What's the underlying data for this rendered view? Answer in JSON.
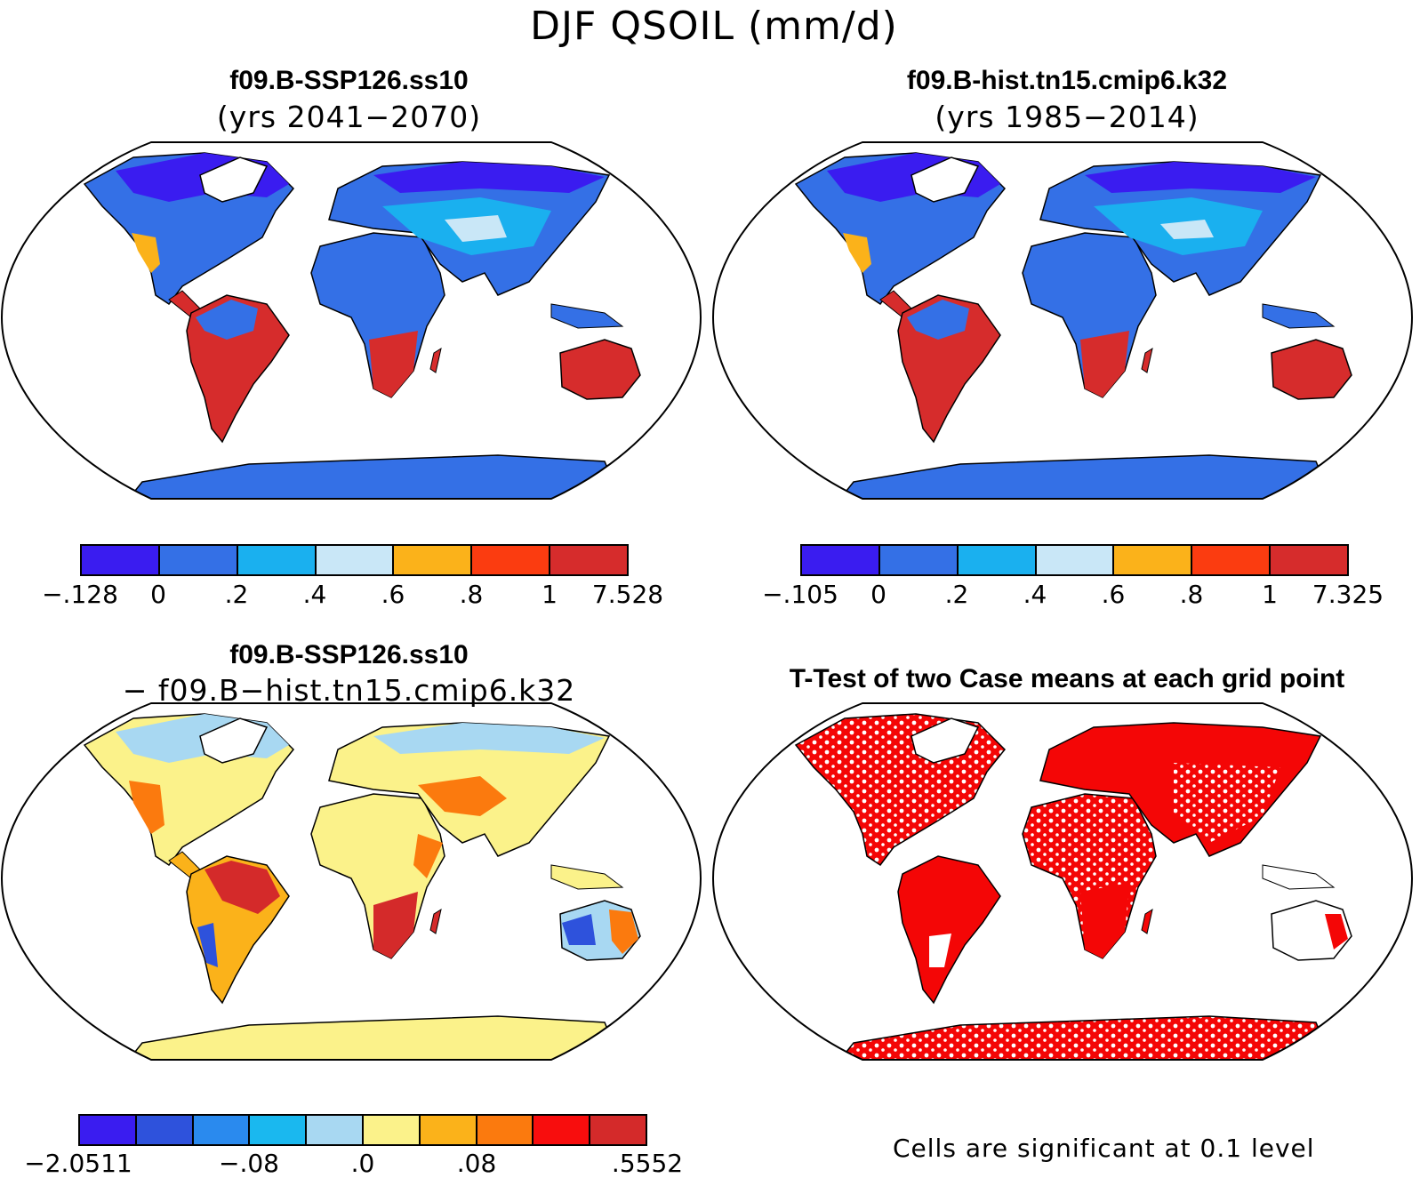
{
  "title": "DJF QSOIL (mm/d)",
  "panels": [
    {
      "title": "f09.B-SSP126.ss10",
      "subtitle": "(yrs 2041−2070)"
    },
    {
      "title": "f09.B-hist.tn15.cmip6.k32",
      "subtitle": "(yrs 1985−2014)"
    },
    {
      "title": "f09.B-SSP126.ss10",
      "subtitle": "− f09.B−hist.tn15.cmip6.k32"
    },
    {
      "title": "T-Test of two Case means at each grid point",
      "subtitle": ""
    }
  ],
  "colorbars": [
    {
      "colors": [
        "#3a1cf0",
        "#3470e6",
        "#1ab0ef",
        "#c9e7f7",
        "#fbb21a",
        "#fb3c10",
        "#d62c2c"
      ],
      "ticks": [
        "−.128",
        "0",
        ".2",
        ".4",
        ".6",
        ".8",
        "1",
        "7.528"
      ]
    },
    {
      "colors": [
        "#3a1cf0",
        "#3470e6",
        "#1ab0ef",
        "#c9e7f7",
        "#fbb21a",
        "#fb3c10",
        "#d62c2c"
      ],
      "ticks": [
        "−.105",
        "0",
        ".2",
        ".4",
        ".6",
        ".8",
        "1",
        "7.325"
      ]
    },
    {
      "colors": [
        "#3a1cf0",
        "#2e52dc",
        "#2a8aee",
        "#1ab8ef",
        "#a8d8f2",
        "#fbf28a",
        "#fbb21a",
        "#fb7a0e",
        "#f80d0d",
        "#d42a2a"
      ],
      "ticks": [
        "−2.0511",
        "−.08",
        ".0",
        ".08",
        ".5552"
      ]
    }
  ],
  "note": "Cells are significant at 0.1 level",
  "map_colors": {
    "ocean": "#ffffff",
    "coast": "#000000",
    "signif": "#f40606"
  }
}
